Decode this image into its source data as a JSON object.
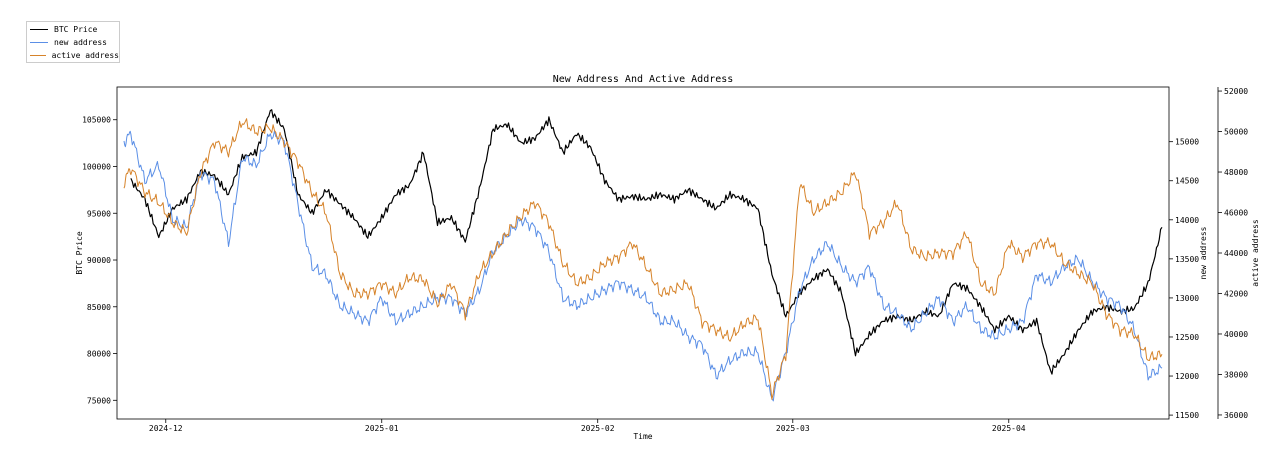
{
  "chart_data": {
    "type": "line",
    "title": "New Address And Active Address",
    "xlabel": "Time",
    "ylabel_left": "BTC Price",
    "ylabel_right_1": "new address",
    "ylabel_right_2": "active address",
    "legend_position": "top-left (outside plot)",
    "x_range": [
      "2024-11-24",
      "2025-04-24"
    ],
    "x_ticks": [
      {
        "date": "2024-12-01",
        "label": "2024-12"
      },
      {
        "date": "2025-01-01",
        "label": "2025-01"
      },
      {
        "date": "2025-02-01",
        "label": "2025-02"
      },
      {
        "date": "2025-03-01",
        "label": "2025-03"
      },
      {
        "date": "2025-04-01",
        "label": "2025-04"
      }
    ],
    "y_left": {
      "range": [
        73000,
        108500
      ],
      "ticks": [
        75000,
        80000,
        85000,
        90000,
        95000,
        100000,
        105000
      ]
    },
    "y_right_new": {
      "range": [
        11450,
        15700
      ],
      "ticks": [
        11500,
        12000,
        12500,
        13000,
        13500,
        14000,
        14500,
        15000
      ]
    },
    "y_right_active": {
      "range": [
        35800,
        52200
      ],
      "ticks": [
        36000,
        38000,
        40000,
        42000,
        44000,
        46000,
        48000,
        50000,
        52000
      ]
    },
    "series": [
      {
        "name": "BTC Price",
        "color": "#000000",
        "axis": "left",
        "points": [
          [
            "2024-11-26",
            98500
          ],
          [
            "2024-11-28",
            96500
          ],
          [
            "2024-11-30",
            92500
          ],
          [
            "2024-12-02",
            95500
          ],
          [
            "2024-12-04",
            96500
          ],
          [
            "2024-12-06",
            99500
          ],
          [
            "2024-12-08",
            99000
          ],
          [
            "2024-12-10",
            97000
          ],
          [
            "2024-12-12",
            101000
          ],
          [
            "2024-12-14",
            101500
          ],
          [
            "2024-12-16",
            106000
          ],
          [
            "2024-12-18",
            104000
          ],
          [
            "2024-12-20",
            97000
          ],
          [
            "2024-12-22",
            95000
          ],
          [
            "2024-12-24",
            97500
          ],
          [
            "2024-12-26",
            96000
          ],
          [
            "2024-12-28",
            94500
          ],
          [
            "2024-12-30",
            92500
          ],
          [
            "2025-01-01",
            94500
          ],
          [
            "2025-01-03",
            97000
          ],
          [
            "2025-01-05",
            98000
          ],
          [
            "2025-01-07",
            101500
          ],
          [
            "2025-01-09",
            94000
          ],
          [
            "2025-01-11",
            94500
          ],
          [
            "2025-01-13",
            92000
          ],
          [
            "2025-01-15",
            97500
          ],
          [
            "2025-01-17",
            104000
          ],
          [
            "2025-01-19",
            104500
          ],
          [
            "2025-01-21",
            102500
          ],
          [
            "2025-01-23",
            103000
          ],
          [
            "2025-01-25",
            105000
          ],
          [
            "2025-01-27",
            101500
          ],
          [
            "2025-01-29",
            103500
          ],
          [
            "2025-01-31",
            102000
          ],
          [
            "2025-02-02",
            98500
          ],
          [
            "2025-02-04",
            96500
          ],
          [
            "2025-02-06",
            96800
          ],
          [
            "2025-02-08",
            96500
          ],
          [
            "2025-02-10",
            97000
          ],
          [
            "2025-02-12",
            96500
          ],
          [
            "2025-02-14",
            97500
          ],
          [
            "2025-02-16",
            96500
          ],
          [
            "2025-02-18",
            95500
          ],
          [
            "2025-02-20",
            97000
          ],
          [
            "2025-02-22",
            96500
          ],
          [
            "2025-02-24",
            95500
          ],
          [
            "2025-02-26",
            88500
          ],
          [
            "2025-02-28",
            84000
          ],
          [
            "2025-03-02",
            86500
          ],
          [
            "2025-03-04",
            88000
          ],
          [
            "2025-03-06",
            89000
          ],
          [
            "2025-03-08",
            86500
          ],
          [
            "2025-03-10",
            80000
          ],
          [
            "2025-03-12",
            82000
          ],
          [
            "2025-03-14",
            83500
          ],
          [
            "2025-03-16",
            84000
          ],
          [
            "2025-03-18",
            83500
          ],
          [
            "2025-03-20",
            84500
          ],
          [
            "2025-03-22",
            84000
          ],
          [
            "2025-03-24",
            87500
          ],
          [
            "2025-03-26",
            87000
          ],
          [
            "2025-03-28",
            85000
          ],
          [
            "2025-03-30",
            82500
          ],
          [
            "2025-04-01",
            84000
          ],
          [
            "2025-04-03",
            82500
          ],
          [
            "2025-04-05",
            83500
          ],
          [
            "2025-04-07",
            78000
          ],
          [
            "2025-04-09",
            80000
          ],
          [
            "2025-04-11",
            82500
          ],
          [
            "2025-04-13",
            84500
          ],
          [
            "2025-04-15",
            85000
          ],
          [
            "2025-04-17",
            84500
          ],
          [
            "2025-04-19",
            84800
          ],
          [
            "2025-04-21",
            87500
          ],
          [
            "2025-04-23",
            93500
          ]
        ]
      },
      {
        "name": "new address",
        "color": "#5b8fe6",
        "axis": "right_new",
        "points": [
          [
            "2024-11-25",
            15000
          ],
          [
            "2024-11-26",
            15100
          ],
          [
            "2024-11-28",
            14500
          ],
          [
            "2024-11-30",
            14700
          ],
          [
            "2024-12-02",
            14000
          ],
          [
            "2024-12-04",
            13900
          ],
          [
            "2024-12-06",
            14600
          ],
          [
            "2024-12-08",
            14500
          ],
          [
            "2024-12-10",
            13700
          ],
          [
            "2024-12-12",
            14800
          ],
          [
            "2024-12-14",
            14700
          ],
          [
            "2024-12-16",
            15100
          ],
          [
            "2024-12-18",
            15000
          ],
          [
            "2024-12-20",
            14200
          ],
          [
            "2024-12-22",
            13400
          ],
          [
            "2024-12-24",
            13300
          ],
          [
            "2024-12-26",
            12900
          ],
          [
            "2024-12-28",
            12800
          ],
          [
            "2024-12-30",
            12700
          ],
          [
            "2025-01-01",
            13000
          ],
          [
            "2025-01-03",
            12700
          ],
          [
            "2025-01-05",
            12800
          ],
          [
            "2025-01-07",
            12900
          ],
          [
            "2025-01-09",
            13000
          ],
          [
            "2025-01-11",
            13000
          ],
          [
            "2025-01-13",
            12800
          ],
          [
            "2025-01-15",
            13100
          ],
          [
            "2025-01-17",
            13600
          ],
          [
            "2025-01-19",
            13800
          ],
          [
            "2025-01-21",
            14000
          ],
          [
            "2025-01-23",
            13900
          ],
          [
            "2025-01-25",
            13600
          ],
          [
            "2025-01-27",
            13000
          ],
          [
            "2025-01-29",
            12900
          ],
          [
            "2025-01-31",
            13000
          ],
          [
            "2025-02-02",
            13100
          ],
          [
            "2025-02-04",
            13200
          ],
          [
            "2025-02-06",
            13100
          ],
          [
            "2025-02-08",
            13000
          ],
          [
            "2025-02-10",
            12700
          ],
          [
            "2025-02-12",
            12700
          ],
          [
            "2025-02-14",
            12500
          ],
          [
            "2025-02-16",
            12400
          ],
          [
            "2025-02-18",
            12000
          ],
          [
            "2025-02-20",
            12200
          ],
          [
            "2025-02-22",
            12300
          ],
          [
            "2025-02-24",
            12300
          ],
          [
            "2025-02-26",
            11700
          ],
          [
            "2025-02-28",
            12300
          ],
          [
            "2025-03-02",
            13100
          ],
          [
            "2025-03-04",
            13500
          ],
          [
            "2025-03-06",
            13700
          ],
          [
            "2025-03-08",
            13400
          ],
          [
            "2025-03-10",
            13200
          ],
          [
            "2025-03-12",
            13400
          ],
          [
            "2025-03-14",
            12900
          ],
          [
            "2025-03-16",
            12800
          ],
          [
            "2025-03-18",
            12600
          ],
          [
            "2025-03-20",
            12800
          ],
          [
            "2025-03-22",
            13000
          ],
          [
            "2025-03-24",
            12700
          ],
          [
            "2025-03-26",
            12900
          ],
          [
            "2025-03-28",
            12600
          ],
          [
            "2025-03-30",
            12500
          ],
          [
            "2025-04-01",
            12600
          ],
          [
            "2025-04-03",
            12700
          ],
          [
            "2025-04-05",
            13300
          ],
          [
            "2025-04-07",
            13200
          ],
          [
            "2025-04-09",
            13400
          ],
          [
            "2025-04-11",
            13500
          ],
          [
            "2025-04-13",
            13200
          ],
          [
            "2025-04-15",
            13000
          ],
          [
            "2025-04-17",
            12900
          ],
          [
            "2025-04-19",
            12600
          ],
          [
            "2025-04-21",
            12000
          ],
          [
            "2025-04-23",
            12100
          ]
        ]
      },
      {
        "name": "active address",
        "color": "#d6832a",
        "axis": "right_active",
        "points": [
          [
            "2024-11-25",
            47500
          ],
          [
            "2024-11-26",
            48200
          ],
          [
            "2024-11-28",
            47000
          ],
          [
            "2024-11-30",
            46500
          ],
          [
            "2024-12-02",
            45500
          ],
          [
            "2024-12-04",
            45000
          ],
          [
            "2024-12-06",
            48000
          ],
          [
            "2024-12-08",
            49500
          ],
          [
            "2024-12-10",
            49000
          ],
          [
            "2024-12-12",
            50500
          ],
          [
            "2024-12-14",
            50000
          ],
          [
            "2024-12-16",
            50200
          ],
          [
            "2024-12-18",
            49500
          ],
          [
            "2024-12-20",
            48500
          ],
          [
            "2024-12-22",
            47000
          ],
          [
            "2024-12-24",
            46000
          ],
          [
            "2024-12-26",
            43000
          ],
          [
            "2024-12-28",
            42000
          ],
          [
            "2024-12-30",
            42000
          ],
          [
            "2025-01-01",
            42500
          ],
          [
            "2025-01-03",
            42000
          ],
          [
            "2025-01-05",
            42800
          ],
          [
            "2025-01-07",
            42700
          ],
          [
            "2025-01-09",
            41500
          ],
          [
            "2025-01-11",
            42500
          ],
          [
            "2025-01-13",
            41000
          ],
          [
            "2025-01-15",
            43000
          ],
          [
            "2025-01-17",
            44000
          ],
          [
            "2025-01-19",
            45000
          ],
          [
            "2025-01-21",
            45800
          ],
          [
            "2025-01-23",
            46500
          ],
          [
            "2025-01-25",
            45500
          ],
          [
            "2025-01-27",
            43500
          ],
          [
            "2025-01-29",
            42500
          ],
          [
            "2025-01-31",
            42800
          ],
          [
            "2025-02-02",
            43500
          ],
          [
            "2025-02-04",
            43800
          ],
          [
            "2025-02-06",
            44500
          ],
          [
            "2025-02-08",
            43300
          ],
          [
            "2025-02-10",
            42000
          ],
          [
            "2025-02-12",
            42200
          ],
          [
            "2025-02-14",
            42500
          ],
          [
            "2025-02-16",
            40600
          ],
          [
            "2025-02-18",
            40200
          ],
          [
            "2025-02-20",
            39800
          ],
          [
            "2025-02-22",
            40500
          ],
          [
            "2025-02-24",
            40800
          ],
          [
            "2025-02-26",
            37000
          ],
          [
            "2025-02-28",
            39000
          ],
          [
            "2025-03-02",
            47500
          ],
          [
            "2025-03-04",
            46000
          ],
          [
            "2025-03-06",
            46500
          ],
          [
            "2025-03-08",
            47000
          ],
          [
            "2025-03-10",
            48000
          ],
          [
            "2025-03-12",
            45000
          ],
          [
            "2025-03-14",
            45500
          ],
          [
            "2025-03-16",
            46500
          ],
          [
            "2025-03-18",
            44200
          ],
          [
            "2025-03-20",
            43800
          ],
          [
            "2025-03-22",
            44000
          ],
          [
            "2025-03-24",
            44000
          ],
          [
            "2025-03-26",
            45000
          ],
          [
            "2025-03-28",
            42500
          ],
          [
            "2025-03-30",
            42000
          ],
          [
            "2025-04-01",
            44500
          ],
          [
            "2025-04-03",
            43800
          ],
          [
            "2025-04-05",
            44500
          ],
          [
            "2025-04-07",
            44500
          ],
          [
            "2025-04-09",
            43500
          ],
          [
            "2025-04-11",
            43000
          ],
          [
            "2025-04-13",
            42500
          ],
          [
            "2025-04-15",
            41000
          ],
          [
            "2025-04-17",
            40200
          ],
          [
            "2025-04-19",
            40000
          ],
          [
            "2025-04-21",
            38800
          ],
          [
            "2025-04-23",
            39000
          ]
        ]
      }
    ]
  }
}
